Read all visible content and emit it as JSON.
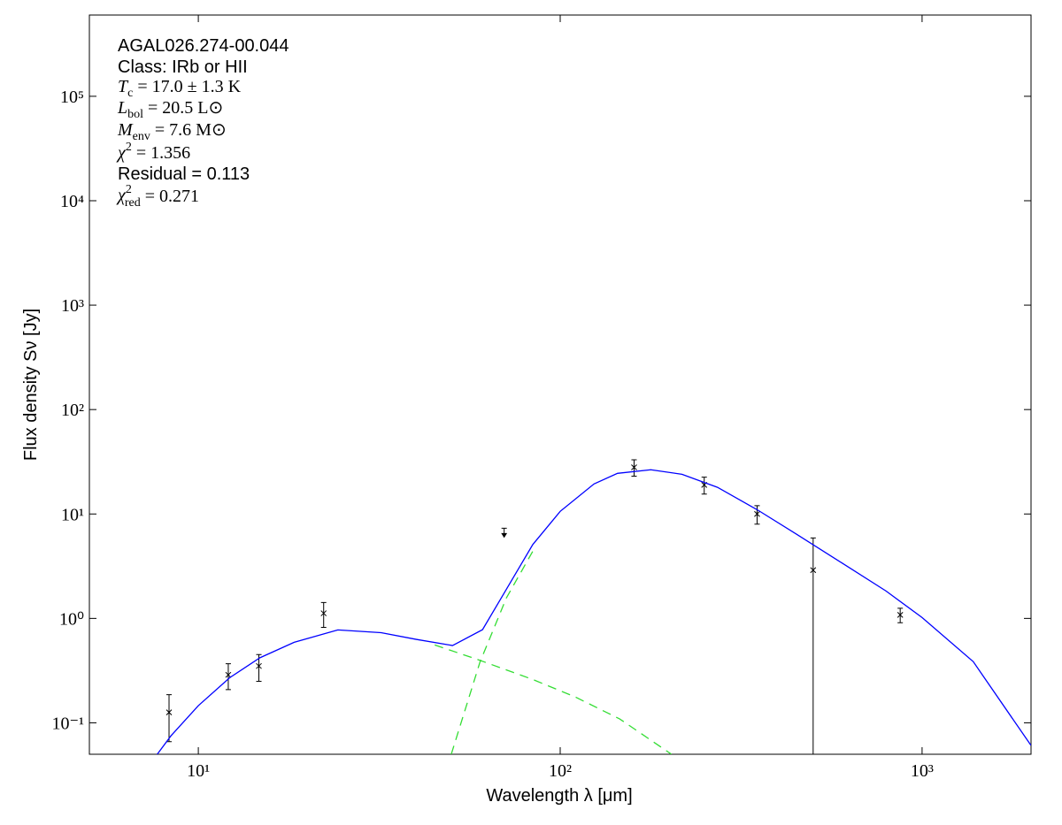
{
  "chart_data": {
    "type": "scatter",
    "xlabel": "Wavelength λ [μm]",
    "ylabel": "Flux density Sν [Jy]",
    "xscale": "log",
    "yscale": "log",
    "xlim": [
      5,
      2000
    ],
    "ylim": [
      0.05,
      600000
    ],
    "xticks": [
      {
        "value": 10,
        "label": "10¹"
      },
      {
        "value": 100,
        "label": "10²"
      },
      {
        "value": 1000,
        "label": "10³"
      }
    ],
    "yticks": [
      {
        "value": 0.1,
        "label": "10⁻¹"
      },
      {
        "value": 1,
        "label": "10⁰"
      },
      {
        "value": 10,
        "label": "10¹"
      },
      {
        "value": 100,
        "label": "10²"
      },
      {
        "value": 1000,
        "label": "10³"
      },
      {
        "value": 10000,
        "label": "10⁴"
      },
      {
        "value": 100000,
        "label": "10⁵"
      }
    ],
    "annotations": [
      {
        "text": "AGAL026.274-00.044"
      },
      {
        "text": "Class: IRb or HII"
      },
      {
        "symbol": "T",
        "sub": "c",
        "text": " = 17.0 ± 1.3 K"
      },
      {
        "symbol": "L",
        "sub": "bol",
        "text": " = 20.5 L⊙"
      },
      {
        "symbol": "M",
        "sub": "env",
        "text": " = 7.6 M⊙"
      },
      {
        "symbol": "χ",
        "sup": "2",
        "text": " = 1.356"
      },
      {
        "text": "Residual = 0.113"
      },
      {
        "symbol": "χ",
        "sup": "2",
        "sub": "red",
        "text": " = 0.271"
      }
    ],
    "series": [
      {
        "color": "#000000",
        "marker": "x",
        "x": [
          8.3,
          12.1,
          14.7,
          22.2,
          160,
          250,
          350,
          500,
          870
        ],
        "values": [
          0.126,
          0.288,
          0.35,
          1.12,
          28,
          19,
          10,
          2.9,
          1.08
        ],
        "errors": [
          0.06,
          0.08,
          0.1,
          0.3,
          5,
          3.5,
          2,
          3,
          0.17
        ]
      },
      {
        "color": "#000000",
        "marker": "upper-limit",
        "x": [
          70
        ],
        "values": [
          7.3
        ]
      },
      {
        "color": "#0000ff",
        "linestyle": "solid",
        "x": [
          7.7,
          8.4,
          10,
          12.2,
          14.8,
          18.4,
          24.3,
          32,
          40,
          50.4,
          61,
          71,
          84,
          100,
          124,
          144,
          178,
          217,
          272,
          350,
          450,
          600,
          795,
          1000,
          1385,
          2000
        ],
        "values": [
          0.05,
          0.075,
          0.146,
          0.27,
          0.42,
          0.59,
          0.776,
          0.73,
          0.63,
          0.55,
          0.78,
          1.9,
          5.1,
          10.6,
          19.4,
          24.5,
          26.5,
          24,
          18,
          11,
          6.4,
          3.4,
          1.83,
          1.02,
          0.385,
          0.0607
        ]
      },
      {
        "color": "#33dd33",
        "linestyle": "dashed",
        "x": [
          45,
          59.6,
          84,
          110,
          146,
          203
        ],
        "values": [
          0.557,
          0.4,
          0.26,
          0.177,
          0.109,
          0.05
        ]
      },
      {
        "color": "#33dd33",
        "linestyle": "dashed",
        "x": [
          50,
          60,
          71,
          84
        ],
        "values": [
          0.05,
          0.38,
          1.57,
          4.4
        ]
      }
    ]
  }
}
